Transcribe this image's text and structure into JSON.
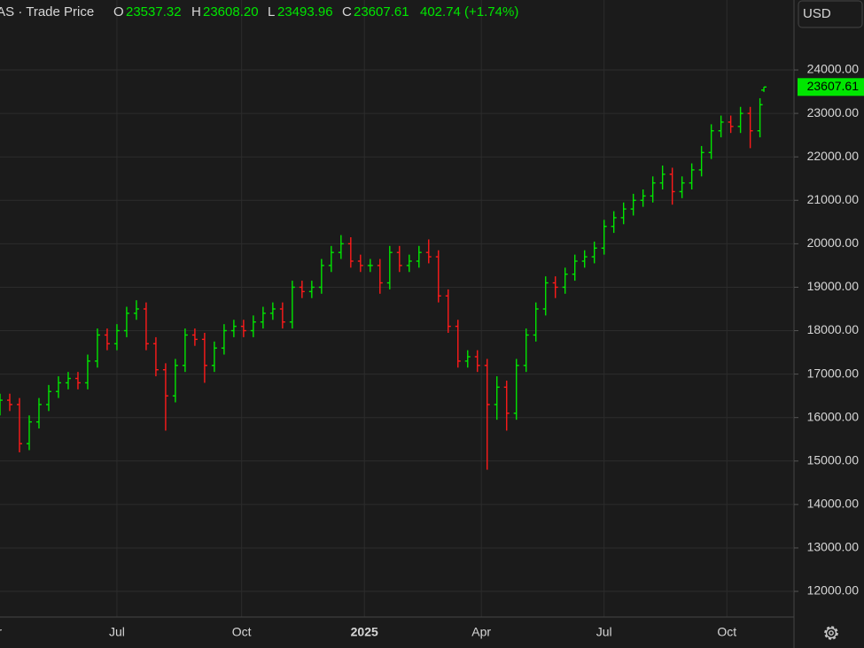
{
  "header": {
    "symbol": "IAS · Trade Price",
    "o_label": "O",
    "o": "23537.32",
    "h_label": "H",
    "h": "23608.20",
    "l_label": "L",
    "l": "23493.96",
    "c_label": "C",
    "c": "23607.61",
    "change": "402.74 (+1.74%)",
    "currency": "USD"
  },
  "chart_data": {
    "type": "ohlc",
    "up_color": "#00e600",
    "down_color": "#ff1a1a",
    "grid": true,
    "last_price_label": "23607.61",
    "xlim": [
      0,
      407
    ],
    "xticks": [
      {
        "value": -4,
        "label": "Apr"
      },
      {
        "value": 60,
        "label": "Jul"
      },
      {
        "value": 124,
        "label": "Oct"
      },
      {
        "value": 187,
        "label": "2025"
      },
      {
        "value": 247,
        "label": "Apr"
      },
      {
        "value": 310,
        "label": "Jul"
      },
      {
        "value": 373,
        "label": "Oct"
      }
    ],
    "ylim": [
      11410,
      25610
    ],
    "yticks": [
      {
        "value": 12000,
        "label": "12000.00"
      },
      {
        "value": 13000,
        "label": "13000.00"
      },
      {
        "value": 14000,
        "label": "14000.00"
      },
      {
        "value": 15000,
        "label": "15000.00"
      },
      {
        "value": 16000,
        "label": "16000.00"
      },
      {
        "value": 17000,
        "label": "17000.00"
      },
      {
        "value": 18000,
        "label": "18000.00"
      },
      {
        "value": 19000,
        "label": "19000.00"
      },
      {
        "value": 20000,
        "label": "20000.00"
      },
      {
        "value": 21000,
        "label": "21000.00"
      },
      {
        "value": 22000,
        "label": "22000.00"
      },
      {
        "value": 23000,
        "label": "23000.00"
      },
      {
        "value": 24000,
        "label": "24000.00"
      }
    ],
    "x": [
      0,
      5,
      10,
      15,
      20,
      25,
      30,
      35,
      40,
      45,
      50,
      55,
      60,
      65,
      70,
      75,
      80,
      85,
      90,
      95,
      100,
      105,
      110,
      115,
      120,
      125,
      130,
      135,
      140,
      145,
      150,
      155,
      160,
      165,
      170,
      175,
      180,
      185,
      190,
      195,
      200,
      205,
      210,
      215,
      220,
      225,
      230,
      235,
      240,
      245,
      250,
      255,
      260,
      265,
      270,
      275,
      280,
      285,
      290,
      295,
      300,
      305,
      310,
      315,
      320,
      325,
      330,
      335,
      340,
      345,
      350,
      355,
      360,
      365,
      370,
      375,
      380,
      385,
      390,
      392
    ],
    "open": [
      16200,
      16400,
      16300,
      15400,
      15900,
      16300,
      16600,
      16800,
      16900,
      16800,
      17300,
      17900,
      17700,
      18000,
      18400,
      18500,
      17700,
      17100,
      16500,
      17200,
      17900,
      17800,
      17200,
      17600,
      18000,
      18100,
      18000,
      18200,
      18400,
      18500,
      18200,
      19000,
      18900,
      19000,
      19500,
      19800,
      20000,
      19600,
      19500,
      19500,
      19100,
      19800,
      19500,
      19600,
      19800,
      19700,
      18800,
      18100,
      17300,
      17400,
      17200,
      16300,
      16700,
      16100,
      17200,
      17900,
      18500,
      19100,
      19000,
      19300,
      19600,
      19700,
      19900,
      20400,
      20600,
      20800,
      21000,
      21100,
      21400,
      21600,
      21200,
      21400,
      21700,
      22100,
      22600,
      22800,
      22700,
      23000,
      22600,
      23537.32
    ],
    "high": [
      16550,
      16550,
      16450,
      16050,
      16450,
      16750,
      16950,
      17050,
      17050,
      17450,
      18050,
      18050,
      18150,
      18550,
      18700,
      18650,
      17850,
      17250,
      17350,
      18050,
      18050,
      17950,
      17750,
      18150,
      18250,
      18250,
      18350,
      18550,
      18650,
      18650,
      19150,
      19150,
      19150,
      19650,
      19950,
      20200,
      20150,
      19750,
      19650,
      19650,
      19950,
      19950,
      19750,
      19950,
      20100,
      19850,
      18950,
      18250,
      17550,
      17550,
      17350,
      16950,
      16850,
      17350,
      18050,
      18650,
      19250,
      19250,
      19450,
      19750,
      19850,
      20050,
      20550,
      20750,
      20950,
      21150,
      21250,
      21550,
      21800,
      21750,
      21550,
      21850,
      22250,
      22750,
      22950,
      22950,
      23150,
      23150,
      23350,
      23608.2
    ],
    "low": [
      16050,
      16150,
      15200,
      15250,
      15750,
      16150,
      16450,
      16650,
      16650,
      16650,
      17150,
      17550,
      17550,
      17850,
      18250,
      17550,
      16950,
      15700,
      16350,
      17050,
      17650,
      16800,
      17050,
      17450,
      17850,
      17850,
      17850,
      18050,
      18250,
      18050,
      18050,
      18750,
      18750,
      18850,
      19350,
      19650,
      19450,
      19350,
      19350,
      18850,
      18950,
      19350,
      19350,
      19450,
      19550,
      18650,
      17950,
      17150,
      17150,
      17050,
      14800,
      15950,
      15700,
      15950,
      17050,
      17750,
      18350,
      18750,
      18850,
      19150,
      19450,
      19550,
      19750,
      20250,
      20450,
      20650,
      20850,
      20950,
      21250,
      20900,
      21050,
      21250,
      21550,
      21950,
      22450,
      22550,
      22550,
      22200,
      22450,
      23493.96
    ],
    "close": [
      16400,
      16300,
      15400,
      15900,
      16300,
      16600,
      16800,
      16900,
      16800,
      17300,
      17900,
      17700,
      18000,
      18400,
      18500,
      17700,
      17100,
      16500,
      17200,
      17900,
      17800,
      17200,
      17600,
      18000,
      18100,
      18000,
      18200,
      18400,
      18500,
      18200,
      19000,
      18900,
      19000,
      19500,
      19800,
      20000,
      19600,
      19500,
      19500,
      19100,
      19800,
      19500,
      19600,
      19800,
      19700,
      18800,
      18100,
      17300,
      17400,
      17200,
      16300,
      16700,
      16100,
      17200,
      17900,
      18500,
      19100,
      19000,
      19300,
      19600,
      19700,
      19900,
      20400,
      20600,
      20800,
      21000,
      21100,
      21400,
      21600,
      21200,
      21400,
      21700,
      22100,
      22600,
      22800,
      22700,
      23000,
      22600,
      23200,
      23607.61
    ]
  }
}
